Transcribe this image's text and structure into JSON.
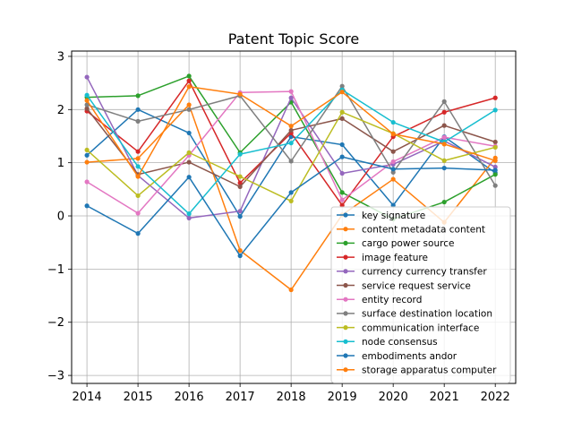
{
  "chart_data": {
    "type": "line",
    "title": "Patent Topic Score",
    "xlabel": "",
    "ylabel": "",
    "x": [
      2014,
      2015,
      2016,
      2017,
      2018,
      2019,
      2020,
      2021,
      2022
    ],
    "xlim": [
      2013.7,
      2022.4
    ],
    "ylim": [
      -3.15,
      3.1
    ],
    "yticks": [
      -3,
      -2,
      -1,
      0,
      1,
      2,
      3
    ],
    "grid": true,
    "legend_position": "lower-right",
    "series": [
      {
        "name": "key signature",
        "color": "#1f77b4",
        "values": [
          1.14,
          2.0,
          1.56,
          -0.01,
          1.49,
          1.34,
          0.2,
          1.49,
          0.81
        ]
      },
      {
        "name": "content metadata content",
        "color": "#ff7f0e",
        "values": [
          1.01,
          1.08,
          2.09,
          -0.65,
          -1.39,
          0.02,
          0.69,
          -0.12,
          1.09
        ]
      },
      {
        "name": "cargo power source",
        "color": "#2ca02c",
        "values": [
          2.23,
          2.26,
          2.63,
          1.19,
          2.14,
          0.44,
          -0.06,
          0.26,
          0.78
        ]
      },
      {
        "name": "image feature",
        "color": "#d62728",
        "values": [
          1.97,
          1.21,
          2.54,
          0.62,
          1.56,
          0.2,
          1.49,
          1.95,
          2.22
        ]
      },
      {
        "name": "currency currency transfer",
        "color": "#9467bd",
        "values": [
          2.61,
          0.76,
          -0.04,
          0.09,
          2.22,
          0.8,
          0.97,
          1.41,
          0.92
        ]
      },
      {
        "name": "service request service",
        "color": "#8c564b",
        "values": [
          2.02,
          0.78,
          1.01,
          0.55,
          1.61,
          1.83,
          1.21,
          1.7,
          1.39
        ]
      },
      {
        "name": "entity record",
        "color": "#e377c2",
        "values": [
          0.64,
          0.05,
          1.14,
          2.32,
          2.34,
          0.3,
          1.02,
          1.48,
          1.31
        ]
      },
      {
        "name": "surface destination location",
        "color": "#7f7f7f",
        "values": [
          2.09,
          1.78,
          2.0,
          2.26,
          1.03,
          2.44,
          0.82,
          2.15,
          0.57
        ]
      },
      {
        "name": "communication interface",
        "color": "#bcbd22",
        "values": [
          1.24,
          0.38,
          1.19,
          0.74,
          0.28,
          1.95,
          1.55,
          1.04,
          1.29
        ]
      },
      {
        "name": "node consensus",
        "color": "#17becf",
        "values": [
          2.27,
          0.93,
          0.04,
          1.16,
          1.37,
          2.37,
          1.76,
          1.39,
          1.99
        ]
      },
      {
        "name": "embodiments andor",
        "color": "#1f77b4",
        "values": [
          0.19,
          -0.33,
          0.73,
          -0.75,
          0.44,
          1.11,
          0.88,
          0.9,
          0.86
        ]
      },
      {
        "name": "storage apparatus computer",
        "color": "#ff7f0e",
        "values": [
          2.17,
          0.74,
          2.43,
          2.29,
          1.69,
          2.33,
          1.54,
          1.35,
          1.04
        ]
      }
    ]
  }
}
